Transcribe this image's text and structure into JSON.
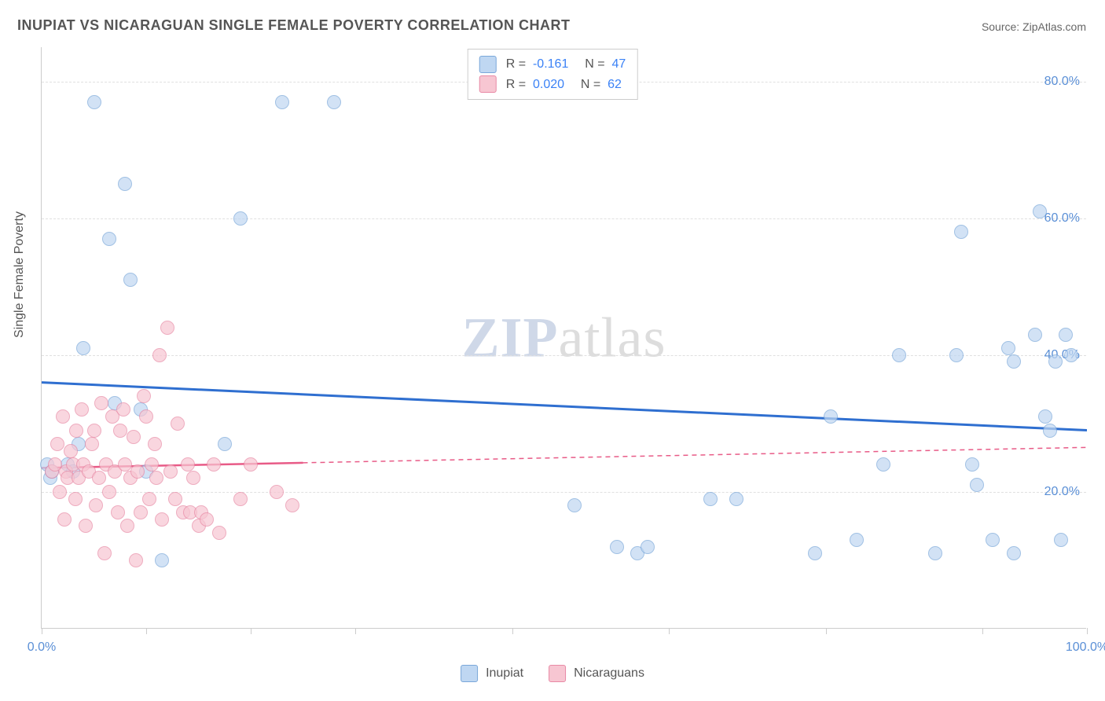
{
  "title": "INUPIAT VS NICARAGUAN SINGLE FEMALE POVERTY CORRELATION CHART",
  "source_label": "Source: ",
  "source_value": "ZipAtlas.com",
  "y_axis_title": "Single Female Poverty",
  "watermark_zip": "ZIP",
  "watermark_atlas": "atlas",
  "chart": {
    "type": "scatter",
    "background_color": "#ffffff",
    "grid_color": "#e0e0e0",
    "axis_color": "#cccccc",
    "text_color": "#555555",
    "tick_label_color": "#5a8fd6",
    "marker_radius": 9,
    "marker_stroke_width": 1.5,
    "xlim": [
      0,
      100
    ],
    "ylim": [
      0,
      85
    ],
    "x_ticks": [
      0,
      10,
      20,
      30,
      45,
      60,
      75,
      90,
      100
    ],
    "x_tick_labels": {
      "0": "0.0%",
      "100": "100.0%"
    },
    "y_gridlines": [
      20,
      40,
      60,
      80
    ],
    "y_tick_labels": {
      "20": "20.0%",
      "40": "40.0%",
      "60": "60.0%",
      "80": "80.0%"
    },
    "series": [
      {
        "name": "Inupiat",
        "fill": "#bfd7f2",
        "stroke": "#7aa7d9",
        "fill_opacity": 0.7,
        "trend": {
          "y_at_x0": 36.0,
          "y_at_x100": 29.0,
          "solid_until_x": 100,
          "color": "#2f6fd0",
          "width": 3
        },
        "R": "-0.161",
        "N": "47",
        "points": [
          [
            0.5,
            24
          ],
          [
            0.8,
            22
          ],
          [
            1.0,
            23
          ],
          [
            2.5,
            24
          ],
          [
            3.5,
            27
          ],
          [
            4.0,
            41
          ],
          [
            5.0,
            77
          ],
          [
            6.5,
            57
          ],
          [
            7.0,
            33
          ],
          [
            8.0,
            65
          ],
          [
            3.0,
            23
          ],
          [
            8.5,
            51
          ],
          [
            9.5,
            32
          ],
          [
            10.0,
            23
          ],
          [
            11.5,
            10
          ],
          [
            17.5,
            27
          ],
          [
            19.0,
            60
          ],
          [
            23.0,
            77
          ],
          [
            28.0,
            77
          ],
          [
            51.0,
            18
          ],
          [
            55.0,
            12
          ],
          [
            57.0,
            11
          ],
          [
            58.0,
            12
          ],
          [
            64.0,
            19
          ],
          [
            66.5,
            19
          ],
          [
            74.0,
            11
          ],
          [
            75.5,
            31
          ],
          [
            78.0,
            13
          ],
          [
            80.5,
            24
          ],
          [
            82.0,
            40
          ],
          [
            85.5,
            11
          ],
          [
            87.5,
            40
          ],
          [
            88.0,
            58
          ],
          [
            89.0,
            24
          ],
          [
            89.5,
            21
          ],
          [
            91.0,
            13
          ],
          [
            92.5,
            41
          ],
          [
            93.0,
            39
          ],
          [
            93.0,
            11
          ],
          [
            95.0,
            43
          ],
          [
            95.5,
            61
          ],
          [
            96.0,
            31
          ],
          [
            96.5,
            29
          ],
          [
            97.0,
            39
          ],
          [
            97.5,
            13
          ],
          [
            98.0,
            43
          ],
          [
            98.5,
            40
          ]
        ]
      },
      {
        "name": "Nicaguans_series",
        "display_name": "Nicaraguans",
        "fill": "#f7c6d2",
        "stroke": "#e889a5",
        "fill_opacity": 0.7,
        "trend": {
          "y_at_x0": 23.5,
          "y_at_x100": 26.5,
          "solid_until_x": 25,
          "color": "#e85b87",
          "width": 2.5,
          "dash": "6 5"
        },
        "R": "0.020",
        "N": "62",
        "points": [
          [
            1.0,
            23
          ],
          [
            1.3,
            24
          ],
          [
            1.5,
            27
          ],
          [
            1.7,
            20
          ],
          [
            2.0,
            31
          ],
          [
            2.2,
            16
          ],
          [
            2.3,
            23
          ],
          [
            2.5,
            22
          ],
          [
            2.8,
            26
          ],
          [
            3.0,
            24
          ],
          [
            3.2,
            19
          ],
          [
            3.3,
            29
          ],
          [
            3.5,
            22
          ],
          [
            3.8,
            32
          ],
          [
            4.0,
            24
          ],
          [
            4.2,
            15
          ],
          [
            4.5,
            23
          ],
          [
            4.8,
            27
          ],
          [
            5.0,
            29
          ],
          [
            5.2,
            18
          ],
          [
            5.5,
            22
          ],
          [
            5.7,
            33
          ],
          [
            6.0,
            11
          ],
          [
            6.2,
            24
          ],
          [
            6.5,
            20
          ],
          [
            6.8,
            31
          ],
          [
            7.0,
            23
          ],
          [
            7.3,
            17
          ],
          [
            7.5,
            29
          ],
          [
            7.8,
            32
          ],
          [
            8.0,
            24
          ],
          [
            8.2,
            15
          ],
          [
            8.5,
            22
          ],
          [
            8.8,
            28
          ],
          [
            9.0,
            10
          ],
          [
            9.2,
            23
          ],
          [
            9.5,
            17
          ],
          [
            9.8,
            34
          ],
          [
            10.0,
            31
          ],
          [
            10.3,
            19
          ],
          [
            10.5,
            24
          ],
          [
            10.8,
            27
          ],
          [
            11.0,
            22
          ],
          [
            11.3,
            40
          ],
          [
            11.5,
            16
          ],
          [
            12.0,
            44
          ],
          [
            12.3,
            23
          ],
          [
            12.8,
            19
          ],
          [
            13.0,
            30
          ],
          [
            13.5,
            17
          ],
          [
            14.0,
            24
          ],
          [
            14.2,
            17
          ],
          [
            14.5,
            22
          ],
          [
            15.0,
            15
          ],
          [
            15.3,
            17
          ],
          [
            15.8,
            16
          ],
          [
            16.5,
            24
          ],
          [
            17.0,
            14
          ],
          [
            19.0,
            19
          ],
          [
            20.0,
            24
          ],
          [
            22.5,
            20
          ],
          [
            24.0,
            18
          ]
        ]
      }
    ]
  },
  "stats_box": {
    "R_label": "R = ",
    "N_label": "N = "
  },
  "legend": {
    "items": [
      "Inupiat",
      "Nicaraguans"
    ]
  }
}
